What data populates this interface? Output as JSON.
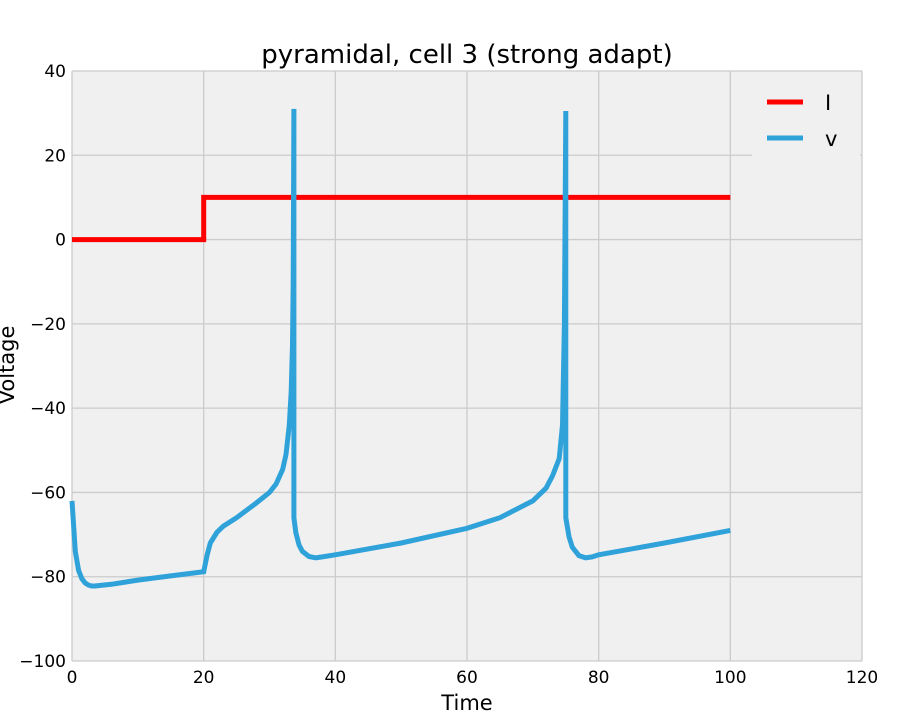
{
  "chart_data": {
    "type": "line",
    "title": "pyramidal, cell 3 (strong adapt)",
    "xlabel": "Time",
    "ylabel": "Voltage",
    "xlim": [
      0,
      120
    ],
    "ylim": [
      -100,
      40
    ],
    "xticks": [
      "0",
      "20",
      "40",
      "60",
      "80",
      "100",
      "120"
    ],
    "yticks": [
      "−100",
      "−80",
      "−60",
      "−40",
      "−20",
      "0",
      "20",
      "40"
    ],
    "grid": true,
    "legend": "top-right",
    "colors": {
      "I": "#ff0000",
      "v": "#30a2da",
      "background": "#f0f0f0",
      "grid": "#cbcbcb"
    },
    "series": [
      {
        "name": "I",
        "color": "#ff0000",
        "x": [
          0,
          20,
          20,
          100
        ],
        "y": [
          0,
          0,
          10,
          10
        ]
      },
      {
        "name": "v",
        "color": "#30a2da",
        "x": [
          0,
          0.5,
          1,
          1.5,
          2,
          2.5,
          3,
          3.5,
          4,
          6,
          10,
          15,
          20,
          20.5,
          21,
          22,
          23,
          25,
          28,
          30,
          31,
          32,
          32.5,
          33,
          33.3,
          33.5,
          33.6,
          33.7,
          33.7,
          34,
          34.5,
          35,
          36,
          37,
          38,
          40,
          50,
          60,
          65,
          70,
          72,
          73,
          74,
          74.5,
          74.8,
          75,
          75,
          75.5,
          76,
          77,
          78,
          79,
          80,
          90,
          100
        ],
        "y": [
          -62,
          -74,
          -78.5,
          -80.5,
          -81.5,
          -82,
          -82.2,
          -82.2,
          -82.1,
          -81.8,
          -80.8,
          -79.8,
          -78.8,
          -75,
          -72,
          -69.5,
          -68,
          -66,
          -62.5,
          -60,
          -58,
          -54.5,
          -51,
          -44,
          -36,
          -25,
          -10,
          31,
          -66,
          -69.5,
          -72.5,
          -74,
          -75.2,
          -75.5,
          -75.3,
          -74.8,
          -72,
          -68.5,
          -66,
          -62,
          -59,
          -56,
          -52,
          -44,
          -20,
          30.5,
          -66,
          -70.5,
          -73,
          -75,
          -75.5,
          -75.3,
          -74.8,
          -72,
          -69
        ]
      }
    ]
  }
}
